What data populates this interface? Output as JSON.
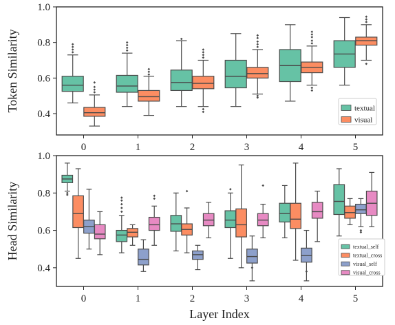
{
  "chart_data": [
    {
      "type": "box",
      "ylabel": "Token Similarity",
      "xlabel": "",
      "ylim": [
        0.28,
        1.0
      ],
      "yticks": [
        0.4,
        0.6,
        0.8,
        1.0
      ],
      "categories": [
        "0",
        "1",
        "2",
        "3",
        "4",
        "5"
      ],
      "legend_position": "bottom-right",
      "series": [
        {
          "name": "textual",
          "color": "#66c2a5",
          "boxes": [
            {
              "whisker_low": 0.46,
              "q1": 0.525,
              "median": 0.56,
              "q3": 0.61,
              "whisker_high": 0.73,
              "outliers": [
                0.745,
                0.76,
                0.775,
                0.79
              ]
            },
            {
              "whisker_low": 0.44,
              "q1": 0.52,
              "median": 0.555,
              "q3": 0.615,
              "whisker_high": 0.74,
              "outliers": [
                0.755,
                0.77,
                0.785,
                0.8
              ]
            },
            {
              "whisker_low": 0.44,
              "q1": 0.53,
              "median": 0.575,
              "q3": 0.645,
              "whisker_high": 0.81,
              "outliers": [
                0.82
              ]
            },
            {
              "whisker_low": 0.44,
              "q1": 0.545,
              "median": 0.61,
              "q3": 0.7,
              "whisker_high": 0.85,
              "outliers": []
            },
            {
              "whisker_low": 0.47,
              "q1": 0.58,
              "median": 0.67,
              "q3": 0.76,
              "whisker_high": 0.9,
              "outliers": []
            },
            {
              "whisker_low": 0.56,
              "q1": 0.66,
              "median": 0.735,
              "q3": 0.81,
              "whisker_high": 0.94,
              "outliers": []
            }
          ]
        },
        {
          "name": "visual",
          "color": "#fc8d62",
          "boxes": [
            {
              "whisker_low": 0.33,
              "q1": 0.385,
              "median": 0.405,
              "q3": 0.435,
              "whisker_high": 0.505,
              "outliers": [
                0.52,
                0.535,
                0.55,
                0.575
              ]
            },
            {
              "whisker_low": 0.39,
              "q1": 0.47,
              "median": 0.495,
              "q3": 0.53,
              "whisker_high": 0.61,
              "outliers": [
                0.62,
                0.635,
                0.65
              ]
            },
            {
              "whisker_low": 0.44,
              "q1": 0.54,
              "median": 0.57,
              "q3": 0.61,
              "whisker_high": 0.7,
              "outliers": [
                0.41,
                0.425,
                0.715,
                0.73,
                0.745,
                0.76
              ]
            },
            {
              "whisker_low": 0.51,
              "q1": 0.6,
              "median": 0.625,
              "q3": 0.66,
              "whisker_high": 0.76,
              "outliers": [
                0.49,
                0.5,
                0.775,
                0.79,
                0.805,
                0.825,
                0.84
              ]
            },
            {
              "whisker_low": 0.56,
              "q1": 0.63,
              "median": 0.66,
              "q3": 0.69,
              "whisker_high": 0.78,
              "outliers": [
                0.53,
                0.545,
                0.795,
                0.81,
                0.83,
                0.845,
                0.86
              ]
            },
            {
              "whisker_low": 0.7,
              "q1": 0.785,
              "median": 0.81,
              "q3": 0.83,
              "whisker_high": 0.9,
              "outliers": [
                0.68,
                0.915,
                0.93,
                0.945
              ]
            }
          ]
        }
      ]
    },
    {
      "type": "box",
      "ylabel": "Head Similarity",
      "xlabel": "Layer Index",
      "ylim": [
        0.3,
        1.0
      ],
      "yticks": [
        0.4,
        0.6,
        0.8,
        1.0
      ],
      "categories": [
        "0",
        "1",
        "2",
        "3",
        "4",
        "5"
      ],
      "legend_position": "bottom-right",
      "series": [
        {
          "name": "textual_self",
          "color": "#66c2a5",
          "boxes": [
            {
              "whisker_low": 0.81,
              "q1": 0.855,
              "median": 0.875,
              "q3": 0.895,
              "whisker_high": 0.96,
              "outliers": [
                0.79,
                0.8
              ]
            },
            {
              "whisker_low": 0.48,
              "q1": 0.54,
              "median": 0.575,
              "q3": 0.6,
              "whisker_high": 0.68,
              "outliers": [
                0.7,
                0.72,
                0.74,
                0.76,
                0.775
              ]
            },
            {
              "whisker_low": 0.49,
              "q1": 0.595,
              "median": 0.635,
              "q3": 0.68,
              "whisker_high": 0.8,
              "outliers": []
            },
            {
              "whisker_low": 0.45,
              "q1": 0.615,
              "median": 0.655,
              "q3": 0.705,
              "whisker_high": 0.8,
              "outliers": [
                0.82
              ]
            },
            {
              "whisker_low": 0.56,
              "q1": 0.645,
              "median": 0.69,
              "q3": 0.745,
              "whisker_high": 0.84,
              "outliers": []
            },
            {
              "whisker_low": 0.57,
              "q1": 0.685,
              "median": 0.755,
              "q3": 0.845,
              "whisker_high": 0.93,
              "outliers": []
            }
          ]
        },
        {
          "name": "textual_cross",
          "color": "#fc8d62",
          "boxes": [
            {
              "whisker_low": 0.45,
              "q1": 0.615,
              "median": 0.69,
              "q3": 0.785,
              "whisker_high": 0.93,
              "outliers": []
            },
            {
              "whisker_low": 0.52,
              "q1": 0.565,
              "median": 0.59,
              "q3": 0.61,
              "whisker_high": 0.63,
              "outliers": []
            },
            {
              "whisker_low": 0.48,
              "q1": 0.575,
              "median": 0.605,
              "q3": 0.635,
              "whisker_high": 0.72,
              "outliers": [
                0.81
              ]
            },
            {
              "whisker_low": 0.4,
              "q1": 0.565,
              "median": 0.63,
              "q3": 0.715,
              "whisker_high": 0.95,
              "outliers": []
            },
            {
              "whisker_low": 0.44,
              "q1": 0.61,
              "median": 0.66,
              "q3": 0.745,
              "whisker_high": 0.96,
              "outliers": []
            },
            {
              "whisker_low": 0.63,
              "q1": 0.665,
              "median": 0.695,
              "q3": 0.73,
              "whisker_high": 0.77,
              "outliers": []
            }
          ]
        },
        {
          "name": "visual_self",
          "color": "#8da0cb",
          "boxes": [
            {
              "whisker_low": 0.5,
              "q1": 0.585,
              "median": 0.62,
              "q3": 0.655,
              "whisker_high": 0.82,
              "outliers": []
            },
            {
              "whisker_low": 0.38,
              "q1": 0.415,
              "median": 0.445,
              "q3": 0.5,
              "whisker_high": 0.55,
              "outliers": []
            },
            {
              "whisker_low": 0.39,
              "q1": 0.445,
              "median": 0.47,
              "q3": 0.49,
              "whisker_high": 0.52,
              "outliers": []
            },
            {
              "whisker_low": 0.33,
              "q1": 0.425,
              "median": 0.46,
              "q3": 0.5,
              "whisker_high": 0.57,
              "outliers": [
                0.4
              ]
            },
            {
              "whisker_low": 0.33,
              "q1": 0.43,
              "median": 0.465,
              "q3": 0.505,
              "whisker_high": 0.6,
              "outliers": [
                0.38
              ]
            },
            {
              "whisker_low": 0.62,
              "q1": 0.69,
              "median": 0.71,
              "q3": 0.74,
              "whisker_high": 0.77,
              "outliers": [
                0.59,
                0.6
              ]
            }
          ]
        },
        {
          "name": "visual_cross",
          "color": "#e78ac3",
          "boxes": [
            {
              "whisker_low": 0.47,
              "q1": 0.555,
              "median": 0.58,
              "q3": 0.63,
              "whisker_high": 0.7,
              "outliers": []
            },
            {
              "whisker_low": 0.52,
              "q1": 0.6,
              "median": 0.63,
              "q3": 0.67,
              "whisker_high": 0.73,
              "outliers": [
                0.77,
                0.785
              ]
            },
            {
              "whisker_low": 0.56,
              "q1": 0.625,
              "median": 0.655,
              "q3": 0.69,
              "whisker_high": 0.75,
              "outliers": []
            },
            {
              "whisker_low": 0.56,
              "q1": 0.625,
              "median": 0.655,
              "q3": 0.69,
              "whisker_high": 0.74,
              "outliers": [
                0.84
              ]
            },
            {
              "whisker_low": 0.54,
              "q1": 0.665,
              "median": 0.7,
              "q3": 0.75,
              "whisker_high": 0.81,
              "outliers": []
            },
            {
              "whisker_low": 0.62,
              "q1": 0.68,
              "median": 0.745,
              "q3": 0.81,
              "whisker_high": 0.91,
              "outliers": []
            }
          ]
        }
      ]
    }
  ]
}
